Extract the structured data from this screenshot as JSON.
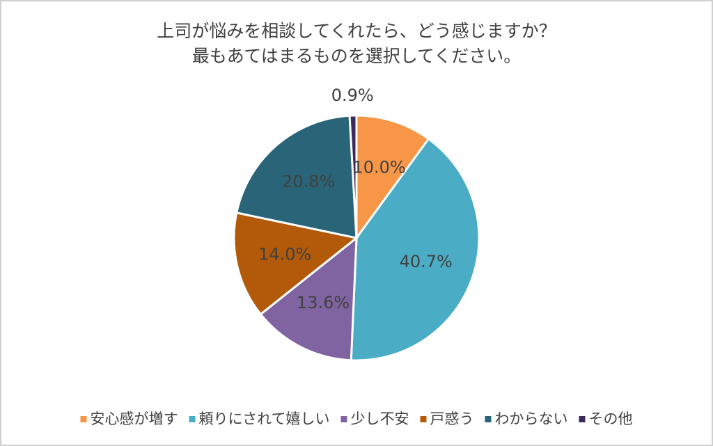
{
  "chart_data": {
    "type": "pie",
    "title": [
      "上司が悩みを相談してくれたら、どう感じますか？",
      "最もあてはまるものを選択してください。"
    ],
    "categories": [
      "安心感が増す",
      "頼りにされて嬉しい",
      "少し不安",
      "戸惑う",
      "わからない",
      "その他"
    ],
    "values": [
      10.0,
      40.7,
      13.6,
      14.0,
      20.8,
      0.9
    ],
    "value_labels": [
      "10.0%",
      "40.7%",
      "13.6%",
      "14.0%",
      "20.8%",
      "0.9%"
    ],
    "colors": [
      "#f79646",
      "#4bacc6",
      "#8064a2",
      "#b35a0a",
      "#2a6478",
      "#3c2a5e"
    ],
    "legend": "bottom"
  }
}
